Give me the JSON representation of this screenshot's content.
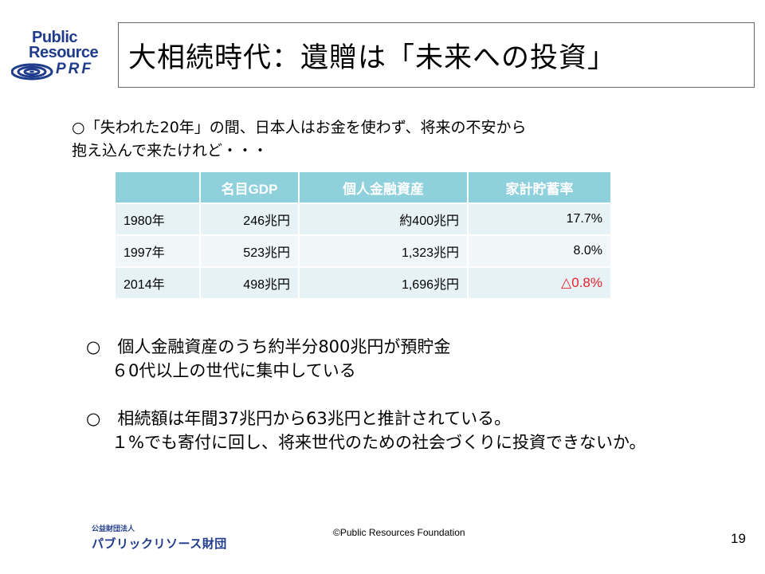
{
  "logo": {
    "line1": "Public",
    "line2": "Resource",
    "line3": "PRF",
    "color": "#1f3b8c"
  },
  "title": "大相続時代：遺贈は「未来への投資」",
  "intro": {
    "line1": "○「失われた20年」の間、日本人はお金を使わず、将来の不安から",
    "line2": "抱え込んで来たけれど・・・"
  },
  "table": {
    "headers": [
      "",
      "名目GDP",
      "個人金融資産",
      "家計貯蓄率"
    ],
    "rows": [
      [
        "1980年",
        "246兆円",
        "約400兆円",
        "17.7%"
      ],
      [
        "1997年",
        "523兆円",
        "1,323兆円",
        "8.0%"
      ],
      [
        "2014年",
        "498兆円",
        "1,696兆円",
        "△0.8%"
      ]
    ],
    "header_color": "#8ed0dc",
    "negative_color": "#e8202a"
  },
  "bullets": [
    {
      "line1": "○　個人金融資産のうち約半分800兆円が預貯金",
      "line2": "６0代以上の世代に集中している"
    },
    {
      "line1": "○　相続額は年間37兆円から63兆円と推計されている。",
      "line2": "１%でも寄付に回し、将来世代のための社会づくりに投資できないか。"
    }
  ],
  "footer": {
    "org_small": "公益財団法人",
    "org_name": "パブリックリソース財団",
    "copyright": "©Public Resources Foundation",
    "page_number": "19"
  }
}
